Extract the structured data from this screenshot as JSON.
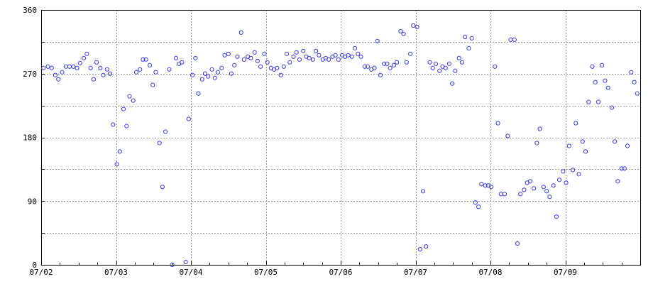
{
  "chart_data": {
    "type": "scatter",
    "title": "",
    "xlabel": "",
    "ylabel": "",
    "colors": {
      "points": "#3a3adf",
      "grid": "#9a9a9a",
      "axes": "#000000",
      "background": "#ffffff"
    },
    "grid": true,
    "xlim": [
      "07/02",
      "07/10"
    ],
    "ylim": [
      0,
      360
    ],
    "x_ticks": [
      "07/02",
      "07/03",
      "07/04",
      "07/05",
      "07/06",
      "07/07",
      "07/08",
      "07/09"
    ],
    "y_ticks": [
      0,
      90,
      180,
      270,
      360
    ],
    "x_gridlines_days": [
      0,
      1,
      2,
      3,
      4,
      5,
      6,
      7
    ],
    "y_gridlines": [
      0,
      45,
      90,
      135,
      180,
      225,
      270,
      315,
      360
    ],
    "x_days_per_tick": 1,
    "series": [
      {
        "points": [
          [
            0.03,
            278
          ],
          [
            0.09,
            280
          ],
          [
            0.14,
            278
          ],
          [
            0.19,
            268
          ],
          [
            0.23,
            262
          ],
          [
            0.28,
            272
          ],
          [
            0.33,
            280
          ],
          [
            0.38,
            280
          ],
          [
            0.43,
            280
          ],
          [
            0.48,
            278
          ],
          [
            0.52,
            285
          ],
          [
            0.57,
            292
          ],
          [
            0.61,
            298
          ],
          [
            0.66,
            278
          ],
          [
            0.7,
            262
          ],
          [
            0.74,
            286
          ],
          [
            0.79,
            278
          ],
          [
            0.83,
            268
          ],
          [
            0.88,
            276
          ],
          [
            0.92,
            270
          ],
          [
            0.96,
            198
          ],
          [
            1.01,
            142
          ],
          [
            1.05,
            160
          ],
          [
            1.1,
            220
          ],
          [
            1.14,
            196
          ],
          [
            1.18,
            238
          ],
          [
            1.23,
            232
          ],
          [
            1.27,
            272
          ],
          [
            1.32,
            276
          ],
          [
            1.36,
            290
          ],
          [
            1.4,
            290
          ],
          [
            1.45,
            282
          ],
          [
            1.49,
            254
          ],
          [
            1.53,
            272
          ],
          [
            1.58,
            172
          ],
          [
            1.62,
            110
          ],
          [
            1.66,
            188
          ],
          [
            1.71,
            276
          ],
          [
            1.75,
            0
          ],
          [
            1.8,
            292
          ],
          [
            1.84,
            284
          ],
          [
            1.88,
            286
          ],
          [
            1.93,
            4
          ],
          [
            1.97,
            206
          ],
          [
            2.02,
            268
          ],
          [
            2.06,
            292
          ],
          [
            2.1,
            242
          ],
          [
            2.15,
            262
          ],
          [
            2.19,
            270
          ],
          [
            2.23,
            266
          ],
          [
            2.28,
            276
          ],
          [
            2.32,
            264
          ],
          [
            2.36,
            272
          ],
          [
            2.41,
            278
          ],
          [
            2.45,
            296
          ],
          [
            2.5,
            298
          ],
          [
            2.54,
            270
          ],
          [
            2.58,
            282
          ],
          [
            2.62,
            294
          ],
          [
            2.67,
            328
          ],
          [
            2.71,
            290
          ],
          [
            2.76,
            294
          ],
          [
            2.8,
            292
          ],
          [
            2.85,
            300
          ],
          [
            2.89,
            288
          ],
          [
            2.93,
            280
          ],
          [
            2.98,
            298
          ],
          [
            3.02,
            286
          ],
          [
            3.07,
            278
          ],
          [
            3.11,
            276
          ],
          [
            3.15,
            278
          ],
          [
            3.2,
            268
          ],
          [
            3.24,
            280
          ],
          [
            3.28,
            298
          ],
          [
            3.32,
            286
          ],
          [
            3.37,
            294
          ],
          [
            3.41,
            300
          ],
          [
            3.45,
            290
          ],
          [
            3.5,
            302
          ],
          [
            3.54,
            294
          ],
          [
            3.58,
            292
          ],
          [
            3.63,
            290
          ],
          [
            3.67,
            302
          ],
          [
            3.71,
            296
          ],
          [
            3.76,
            290
          ],
          [
            3.8,
            292
          ],
          [
            3.84,
            290
          ],
          [
            3.89,
            294
          ],
          [
            3.93,
            296
          ],
          [
            3.97,
            290
          ],
          [
            4.02,
            296
          ],
          [
            4.06,
            294
          ],
          [
            4.1,
            296
          ],
          [
            4.15,
            294
          ],
          [
            4.19,
            306
          ],
          [
            4.23,
            298
          ],
          [
            4.27,
            294
          ],
          [
            4.32,
            280
          ],
          [
            4.36,
            280
          ],
          [
            4.41,
            276
          ],
          [
            4.45,
            278
          ],
          [
            4.49,
            316
          ],
          [
            4.53,
            268
          ],
          [
            4.58,
            284
          ],
          [
            4.62,
            284
          ],
          [
            4.66,
            278
          ],
          [
            4.71,
            282
          ],
          [
            4.75,
            286
          ],
          [
            4.8,
            330
          ],
          [
            4.84,
            326
          ],
          [
            4.88,
            286
          ],
          [
            4.93,
            298
          ],
          [
            4.97,
            338
          ],
          [
            5.02,
            336
          ],
          [
            5.06,
            22
          ],
          [
            5.1,
            104
          ],
          [
            5.14,
            26
          ],
          [
            5.19,
            286
          ],
          [
            5.23,
            278
          ],
          [
            5.27,
            284
          ],
          [
            5.32,
            274
          ],
          [
            5.36,
            280
          ],
          [
            5.4,
            278
          ],
          [
            5.45,
            284
          ],
          [
            5.49,
            256
          ],
          [
            5.53,
            274
          ],
          [
            5.58,
            292
          ],
          [
            5.62,
            286
          ],
          [
            5.66,
            322
          ],
          [
            5.71,
            306
          ],
          [
            5.75,
            320
          ],
          [
            5.8,
            88
          ],
          [
            5.84,
            82
          ],
          [
            5.88,
            114
          ],
          [
            5.93,
            112
          ],
          [
            5.97,
            112
          ],
          [
            6.01,
            110
          ],
          [
            6.06,
            280
          ],
          [
            6.1,
            200
          ],
          [
            6.14,
            100
          ],
          [
            6.19,
            100
          ],
          [
            6.23,
            182
          ],
          [
            6.27,
            318
          ],
          [
            6.32,
            318
          ],
          [
            6.36,
            30
          ],
          [
            6.4,
            100
          ],
          [
            6.45,
            106
          ],
          [
            6.49,
            116
          ],
          [
            6.53,
            118
          ],
          [
            6.58,
            108
          ],
          [
            6.62,
            172
          ],
          [
            6.66,
            192
          ],
          [
            6.71,
            110
          ],
          [
            6.75,
            104
          ],
          [
            6.79,
            96
          ],
          [
            6.84,
            112
          ],
          [
            6.88,
            68
          ],
          [
            6.92,
            120
          ],
          [
            6.97,
            132
          ],
          [
            7.01,
            116
          ],
          [
            7.05,
            168
          ],
          [
            7.1,
            134
          ],
          [
            7.14,
            200
          ],
          [
            7.18,
            128
          ],
          [
            7.23,
            174
          ],
          [
            7.27,
            160
          ],
          [
            7.31,
            230
          ],
          [
            7.36,
            280
          ],
          [
            7.4,
            258
          ],
          [
            7.44,
            230
          ],
          [
            7.49,
            282
          ],
          [
            7.53,
            260
          ],
          [
            7.57,
            250
          ],
          [
            7.62,
            222
          ],
          [
            7.66,
            174
          ],
          [
            7.7,
            118
          ],
          [
            7.75,
            136
          ],
          [
            7.79,
            136
          ],
          [
            7.83,
            168
          ],
          [
            7.88,
            272
          ],
          [
            7.92,
            258
          ],
          [
            7.96,
            242
          ]
        ]
      }
    ]
  }
}
